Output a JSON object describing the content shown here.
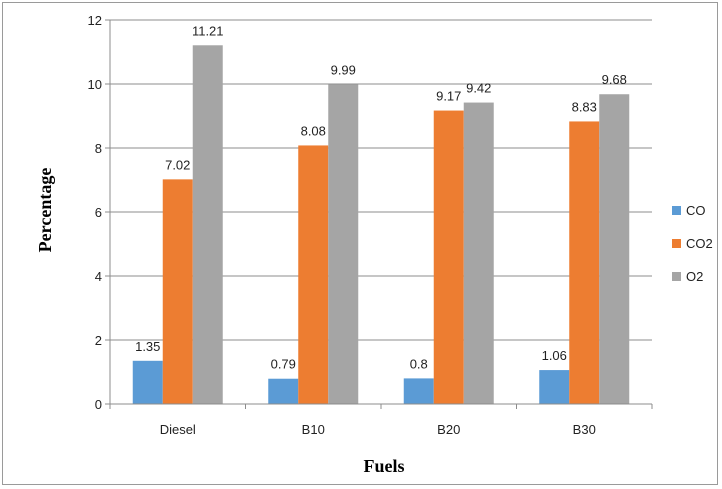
{
  "chart_data": {
    "type": "bar",
    "title": "",
    "xlabel": "Fuels",
    "ylabel": "Percentage",
    "categories": [
      "Diesel",
      "B10",
      "B20",
      "B30"
    ],
    "series": [
      {
        "name": "CO",
        "color": "#5b9bd5",
        "values": [
          1.35,
          0.79,
          0.8,
          1.06
        ]
      },
      {
        "name": "CO2",
        "color": "#ed7d31",
        "values": [
          7.02,
          8.08,
          9.17,
          8.83
        ]
      },
      {
        "name": "O2",
        "color": "#a5a5a5",
        "values": [
          11.21,
          9.99,
          9.42,
          9.68
        ]
      }
    ],
    "value_labels": [
      [
        "1.35",
        "0.79",
        "0.8",
        "1.06"
      ],
      [
        "7.02",
        "8.08",
        "9.17",
        "8.83"
      ],
      [
        "11.21",
        "9.99",
        "9.42",
        "9.68"
      ]
    ],
    "ylim": [
      0,
      12
    ],
    "yticks": [
      "0",
      "2",
      "4",
      "6",
      "8",
      "10",
      "12"
    ],
    "grid": true,
    "legend_position": "right"
  }
}
